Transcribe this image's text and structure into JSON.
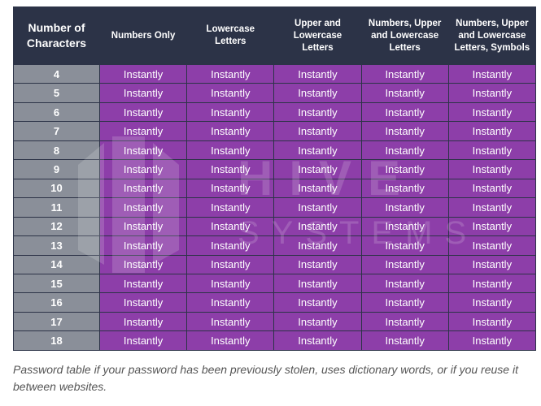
{
  "chart_data": {
    "type": "table",
    "columns": [
      "Number of Characters",
      "Numbers Only",
      "Lowercase Letters",
      "Upper and Lowercase Letters",
      "Numbers, Upper and Lowercase Letters",
      "Numbers, Upper and Lowercase Letters, Symbols"
    ],
    "column_labels_display": [
      [
        "Number of",
        "Characters"
      ],
      [
        "Numbers Only"
      ],
      [
        "Lowercase",
        "Letters"
      ],
      [
        "Upper and",
        "Lowercase",
        "Letters"
      ],
      [
        "Numbers, Upper",
        "and Lowercase",
        "Letters"
      ],
      [
        "Numbers, Upper",
        "and Lowercase",
        "Letters, Symbols"
      ]
    ],
    "rows": [
      {
        "chars": "4",
        "times": [
          "Instantly",
          "Instantly",
          "Instantly",
          "Instantly",
          "Instantly"
        ]
      },
      {
        "chars": "5",
        "times": [
          "Instantly",
          "Instantly",
          "Instantly",
          "Instantly",
          "Instantly"
        ]
      },
      {
        "chars": "6",
        "times": [
          "Instantly",
          "Instantly",
          "Instantly",
          "Instantly",
          "Instantly"
        ]
      },
      {
        "chars": "7",
        "times": [
          "Instantly",
          "Instantly",
          "Instantly",
          "Instantly",
          "Instantly"
        ]
      },
      {
        "chars": "8",
        "times": [
          "Instantly",
          "Instantly",
          "Instantly",
          "Instantly",
          "Instantly"
        ]
      },
      {
        "chars": "9",
        "times": [
          "Instantly",
          "Instantly",
          "Instantly",
          "Instantly",
          "Instantly"
        ]
      },
      {
        "chars": "10",
        "times": [
          "Instantly",
          "Instantly",
          "Instantly",
          "Instantly",
          "Instantly"
        ]
      },
      {
        "chars": "11",
        "times": [
          "Instantly",
          "Instantly",
          "Instantly",
          "Instantly",
          "Instantly"
        ]
      },
      {
        "chars": "12",
        "times": [
          "Instantly",
          "Instantly",
          "Instantly",
          "Instantly",
          "Instantly"
        ]
      },
      {
        "chars": "13",
        "times": [
          "Instantly",
          "Instantly",
          "Instantly",
          "Instantly",
          "Instantly"
        ]
      },
      {
        "chars": "14",
        "times": [
          "Instantly",
          "Instantly",
          "Instantly",
          "Instantly",
          "Instantly"
        ]
      },
      {
        "chars": "15",
        "times": [
          "Instantly",
          "Instantly",
          "Instantly",
          "Instantly",
          "Instantly"
        ]
      },
      {
        "chars": "16",
        "times": [
          "Instantly",
          "Instantly",
          "Instantly",
          "Instantly",
          "Instantly"
        ]
      },
      {
        "chars": "17",
        "times": [
          "Instantly",
          "Instantly",
          "Instantly",
          "Instantly",
          "Instantly"
        ]
      },
      {
        "chars": "18",
        "times": [
          "Instantly",
          "Instantly",
          "Instantly",
          "Instantly",
          "Instantly"
        ]
      }
    ],
    "colors": {
      "header_bg": "#2c3347",
      "char_cell_bg": "#8a8f99",
      "time_cell_bg": "#8d3ea9",
      "text": "#ffffff"
    }
  },
  "watermark": {
    "line1": "HIVE",
    "line2": "SYSTEMS",
    "icon": "hexagon-logo-icon"
  },
  "caption": "Password table if your password has been previously stolen, uses dictionary words, or if you reuse it between websites."
}
